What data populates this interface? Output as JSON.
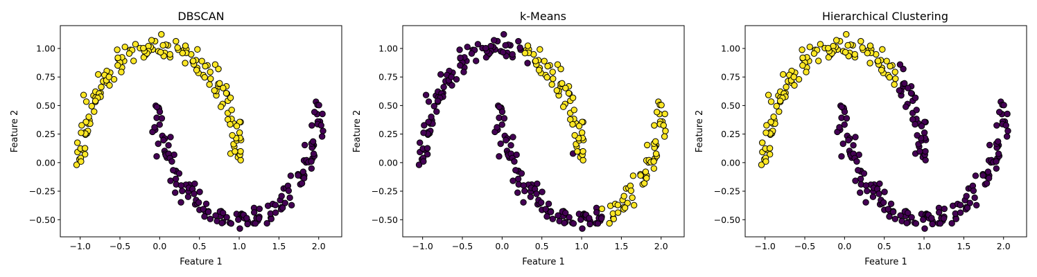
{
  "figure": {
    "colors": {
      "purple": "#440154",
      "yellow": "#fde725",
      "edge": "#000000",
      "background": "#ffffff"
    }
  },
  "chart_data": [
    {
      "type": "scatter",
      "title": "DBSCAN",
      "xlabel": "Feature 1",
      "ylabel": "Feature 2",
      "xlim": [
        -1.25,
        2.29
      ],
      "ylim": [
        -0.65,
        1.2
      ],
      "xticks": [
        -1.0,
        -0.5,
        0.0,
        0.5,
        1.0,
        1.5,
        2.0
      ],
      "xtick_labels": [
        "−1.0",
        "−0.5",
        "0.0",
        "0.5",
        "1.0",
        "1.5",
        "2.0"
      ],
      "yticks": [
        -0.5,
        -0.25,
        0.0,
        0.25,
        0.5,
        0.75,
        1.0
      ],
      "ytick_labels": [
        "−0.50",
        "−0.25",
        "0.00",
        "0.25",
        "0.50",
        "0.75",
        "1.00"
      ],
      "grid": false,
      "colormap": "viridis",
      "assignment": "dbscan",
      "point_count": 300
    },
    {
      "type": "scatter",
      "title": "k-Means",
      "xlabel": "Feature 1",
      "ylabel": "Feature 2",
      "xlim": [
        -1.25,
        2.29
      ],
      "ylim": [
        -0.65,
        1.2
      ],
      "xticks": [
        -1.0,
        -0.5,
        0.0,
        0.5,
        1.0,
        1.5,
        2.0
      ],
      "xtick_labels": [
        "−1.0",
        "−0.5",
        "0.0",
        "0.5",
        "1.0",
        "1.5",
        "2.0"
      ],
      "yticks": [
        -0.5,
        -0.25,
        0.0,
        0.25,
        0.5,
        0.75,
        1.0
      ],
      "ytick_labels": [
        "−0.50",
        "−0.25",
        "0.00",
        "0.25",
        "0.50",
        "0.75",
        "1.00"
      ],
      "grid": false,
      "colormap": "viridis",
      "assignment": "kmeans",
      "point_count": 300
    },
    {
      "type": "scatter",
      "title": "Hierarchical Clustering",
      "xlabel": "Feature 1",
      "ylabel": "Feature 2",
      "xlim": [
        -1.25,
        2.29
      ],
      "ylim": [
        -0.65,
        1.2
      ],
      "xticks": [
        -1.0,
        -0.5,
        0.0,
        0.5,
        1.0,
        1.5,
        2.0
      ],
      "xtick_labels": [
        "−1.0",
        "−0.5",
        "0.0",
        "0.5",
        "1.0",
        "1.5",
        "2.0"
      ],
      "yticks": [
        -0.5,
        -0.25,
        0.0,
        0.25,
        0.5,
        0.75,
        1.0
      ],
      "ytick_labels": [
        "−0.50",
        "−0.25",
        "0.00",
        "0.25",
        "0.50",
        "0.75",
        "1.00"
      ],
      "grid": false,
      "colormap": "viridis",
      "assignment": "hierarchical",
      "point_count": 300
    }
  ]
}
